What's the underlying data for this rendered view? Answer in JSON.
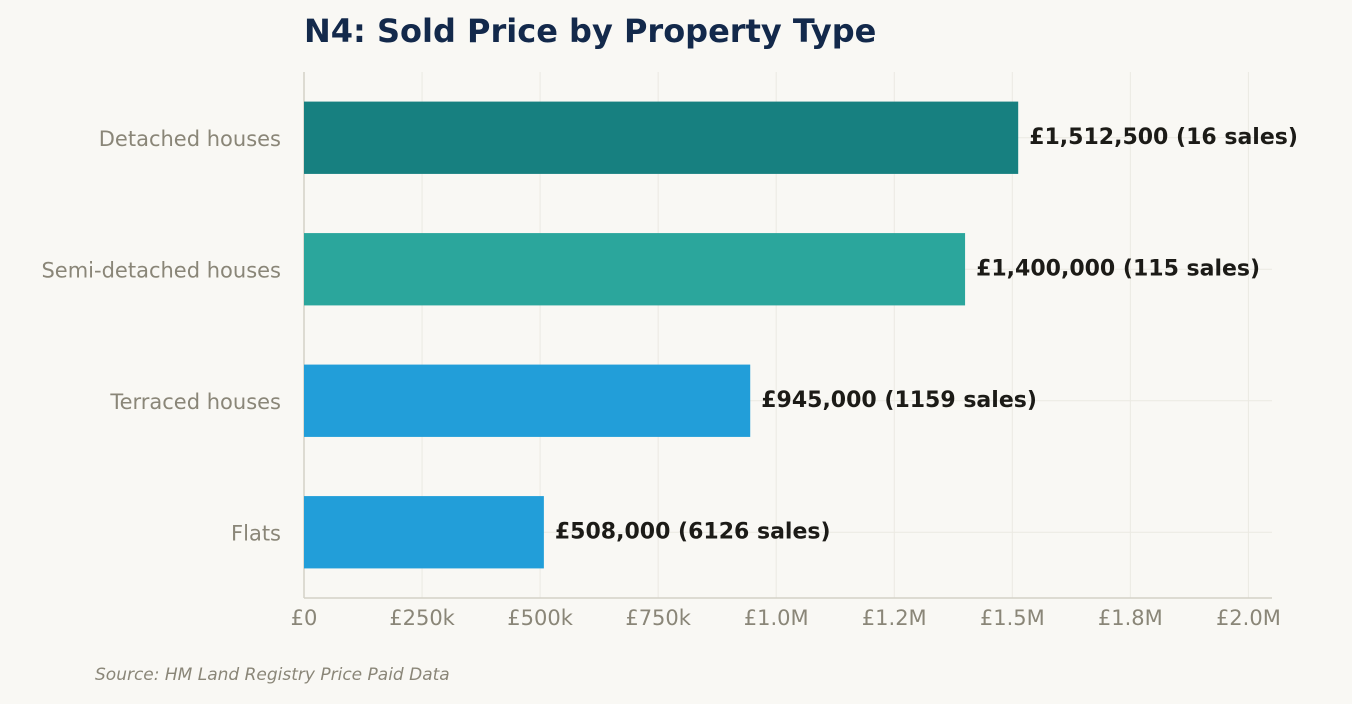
{
  "chart_data": {
    "type": "bar",
    "orientation": "horizontal",
    "title": "N4: Sold Price by Property Type",
    "categories": [
      "Detached houses",
      "Semi-detached houses",
      "Terraced houses",
      "Flats"
    ],
    "values": [
      1512500,
      1400000,
      945000,
      508000
    ],
    "sales": [
      16,
      115,
      1159,
      6126
    ],
    "data_labels": [
      "£1,512,500  (16 sales)",
      "£1,400,000  (115 sales)",
      "£945,000  (1159 sales)",
      "£508,000  (6126 sales)"
    ],
    "bar_colors": [
      "#178080",
      "#2ba69c",
      "#229ed9",
      "#229ed9"
    ],
    "xlim": [
      0,
      2050000
    ],
    "x_ticks": [
      0,
      250000,
      500000,
      750000,
      1000000,
      1250000,
      1500000,
      1750000,
      2000000
    ],
    "x_tick_labels": [
      "£0",
      "£250k",
      "£500k",
      "£750k",
      "£1.0M",
      "£1.2M",
      "£1.5M",
      "£1.8M",
      "£2.0M"
    ],
    "xlabel": "",
    "ylabel": "",
    "grid": true,
    "source": "Source: HM Land Registry Price Paid Data"
  }
}
